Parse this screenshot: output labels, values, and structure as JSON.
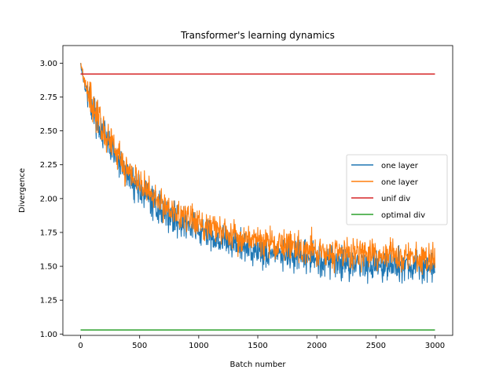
{
  "chart_data": {
    "type": "line",
    "title": "Transformer's learning dynamics",
    "xlabel": "Batch number",
    "ylabel": "Divergence",
    "xlim": [
      -150,
      3150
    ],
    "ylim": [
      0.99,
      3.13
    ],
    "xticks": [
      0,
      500,
      1000,
      1500,
      2000,
      2500,
      3000
    ],
    "yticks": [
      1.0,
      1.25,
      1.5,
      1.75,
      2.0,
      2.25,
      2.5,
      2.75,
      3.0
    ],
    "grid": false,
    "legend_position": "center-right",
    "series": [
      {
        "name": "one layer",
        "color": "#1f77b4",
        "x": [
          0,
          20,
          50,
          100,
          150,
          200,
          300,
          400,
          500,
          600,
          700,
          800,
          900,
          1000,
          1200,
          1400,
          1600,
          1800,
          2000,
          2200,
          2400,
          2600,
          2800,
          3000
        ],
        "y": [
          3.0,
          2.9,
          2.8,
          2.68,
          2.56,
          2.46,
          2.3,
          2.17,
          2.07,
          1.98,
          1.91,
          1.85,
          1.8,
          1.76,
          1.69,
          1.64,
          1.6,
          1.57,
          1.55,
          1.53,
          1.52,
          1.51,
          1.5,
          1.49
        ],
        "noise_amplitude": 0.09
      },
      {
        "name": "one layer",
        "color": "#ff7f0e",
        "x": [
          0,
          20,
          50,
          100,
          150,
          200,
          300,
          400,
          500,
          600,
          700,
          800,
          900,
          1000,
          1200,
          1400,
          1600,
          1800,
          2000,
          2200,
          2400,
          2600,
          2800,
          3000
        ],
        "y": [
          3.02,
          2.92,
          2.82,
          2.7,
          2.59,
          2.49,
          2.34,
          2.21,
          2.11,
          2.03,
          1.96,
          1.9,
          1.86,
          1.82,
          1.76,
          1.71,
          1.67,
          1.64,
          1.62,
          1.6,
          1.59,
          1.58,
          1.57,
          1.56
        ],
        "noise_amplitude": 0.09
      },
      {
        "name": "unif div",
        "color": "#d62728",
        "x": [
          0,
          3000
        ],
        "y": [
          2.92,
          2.92
        ]
      },
      {
        "name": "optimal div",
        "color": "#2ca02c",
        "x": [
          0,
          3000
        ],
        "y": [
          1.03,
          1.03
        ]
      }
    ]
  }
}
